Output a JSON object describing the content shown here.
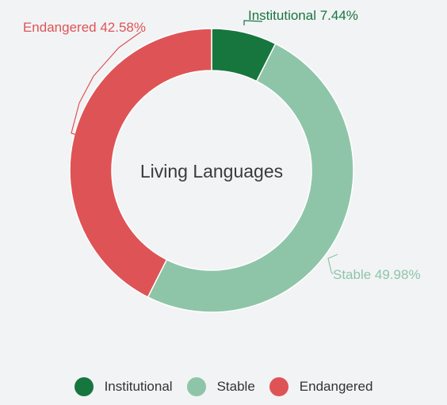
{
  "chart_data": {
    "type": "pie",
    "variant": "donut",
    "center_title": "Living Languages",
    "slices": [
      {
        "name": "Institutional",
        "value": 7.44,
        "label": "Institutional 7.44%",
        "color": "#17763e"
      },
      {
        "name": "Stable",
        "value": 49.98,
        "label": "Stable 49.98%",
        "color": "#8ec5a8"
      },
      {
        "name": "Endangered",
        "value": 42.58,
        "label": "Endangered 42.58%",
        "color": "#de5456"
      }
    ],
    "legend": {
      "position": "bottom",
      "items": [
        "Institutional",
        "Stable",
        "Endangered"
      ]
    }
  }
}
